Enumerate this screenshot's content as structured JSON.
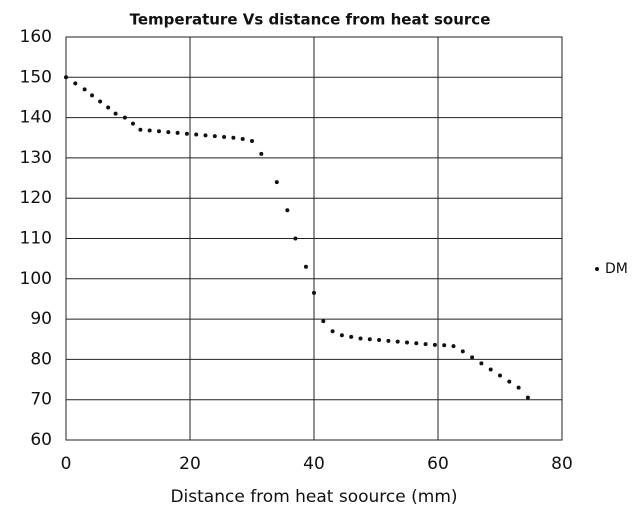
{
  "chart_data": {
    "type": "scatter",
    "title": "Temperature Vs distance from heat source",
    "x_label": "Distance from heat soource (mm)",
    "xlim": [
      0,
      80
    ],
    "xticks": [
      0,
      20,
      40,
      60,
      80
    ],
    "ylim": [
      60,
      160
    ],
    "yticks": [
      60,
      70,
      80,
      90,
      100,
      110,
      120,
      130,
      140,
      150,
      160
    ],
    "grid": true,
    "legend": "right",
    "series": [
      {
        "name": "DM",
        "color": "#111111",
        "x": [
          0,
          1.5,
          3,
          4.2,
          5.5,
          6.8,
          8,
          9.5,
          10.8,
          12,
          13.5,
          15,
          16.5,
          18,
          19.5,
          21,
          22.5,
          24,
          25.5,
          27,
          28.5,
          30,
          31.5,
          34,
          35.7,
          37,
          38.7,
          40,
          41.5,
          43,
          44.5,
          46,
          47.5,
          49,
          50.5,
          52,
          53.5,
          55,
          56.5,
          58,
          59.5,
          61,
          62.5,
          64,
          65.5,
          67,
          68.5,
          70,
          71.5,
          73,
          74.5
        ],
        "values": [
          150,
          148.5,
          147,
          145.5,
          144,
          142.5,
          141,
          140,
          138.5,
          137,
          136.8,
          136.6,
          136.4,
          136.2,
          136,
          135.8,
          135.6,
          135.4,
          135.2,
          135,
          134.7,
          134.2,
          131,
          124,
          117,
          110,
          103,
          96.5,
          89.5,
          87,
          86,
          85.6,
          85.2,
          85,
          84.8,
          84.6,
          84.4,
          84.2,
          84,
          83.8,
          83.6,
          83.5,
          83.3,
          82,
          80.5,
          79,
          77.5,
          76,
          74.5,
          73,
          70.5
        ]
      }
    ]
  }
}
